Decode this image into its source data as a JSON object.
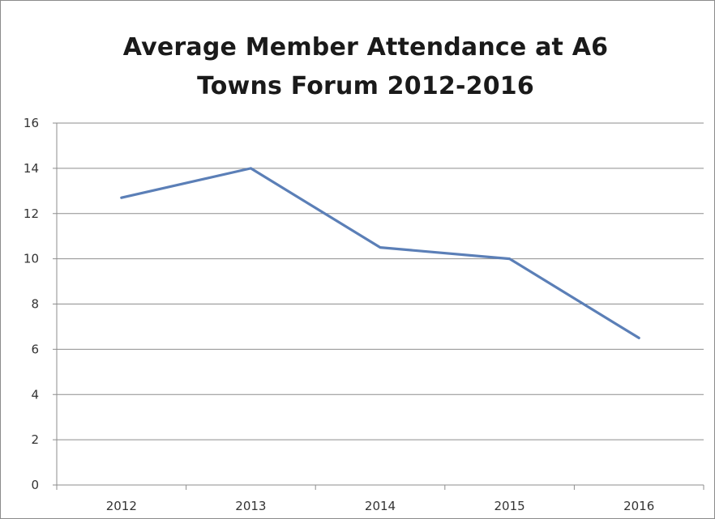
{
  "chart_data": {
    "type": "line",
    "title_line1": "Average Member Attendance at A6",
    "title_line2": "Towns Forum 2012-2016",
    "xlabel": "",
    "ylabel": "",
    "categories": [
      "2012",
      "2013",
      "2014",
      "2015",
      "2016"
    ],
    "series": [
      {
        "values": [
          12.7,
          14.0,
          10.5,
          10.0,
          6.5
        ],
        "color": "#5b7fb7"
      }
    ],
    "ylim": [
      0,
      16
    ],
    "yticks": [
      "0",
      "2",
      "4",
      "6",
      "8",
      "10",
      "12",
      "14",
      "16"
    ],
    "grid": true,
    "legend": "none"
  }
}
